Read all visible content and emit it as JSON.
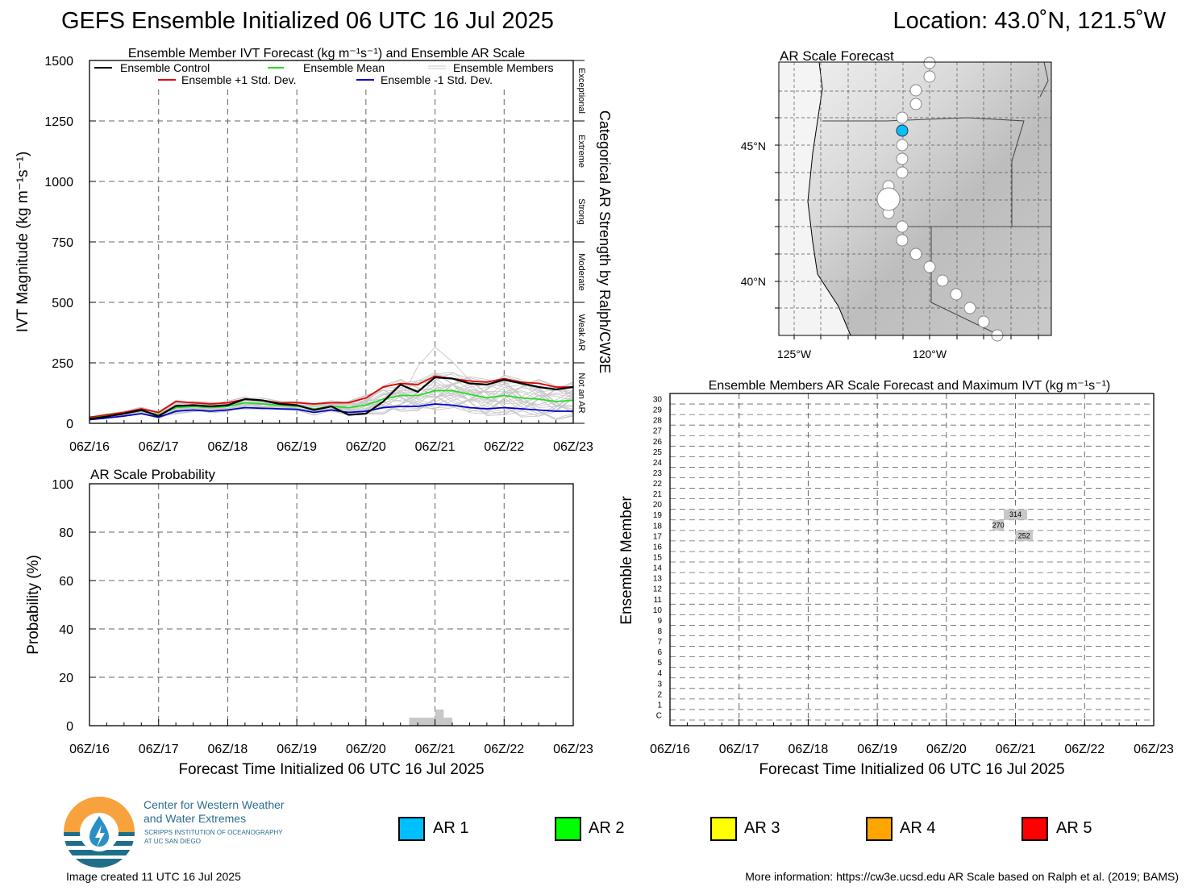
{
  "header": {
    "title": "GEFS Ensemble Initialized 06 UTC 16 Jul 2025",
    "location": "Location: 43.0˚N, 121.5˚W"
  },
  "time_ticks": [
    "06Z/16",
    "06Z/17",
    "06Z/18",
    "06Z/19",
    "06Z/20",
    "06Z/21",
    "06Z/22",
    "06Z/23"
  ],
  "ivt_panel": {
    "title": "Ensemble Member IVT Forecast (kg m⁻¹s⁻¹) and Ensemble AR Scale",
    "ylabel": "IVT Magnitude (kg m⁻¹s⁻¹)",
    "right_label": "Categorical AR Strength by Ralph/CW3E",
    "categories": [
      "Exceptional",
      "Extreme",
      "Strong",
      "Moderate",
      "Weak AR",
      "Not an AR"
    ],
    "legend": {
      "control": "Ensemble Control",
      "mean": "Ensemble Mean",
      "members": "Ensemble Members",
      "plus": "Ensemble +1 Std. Dev.",
      "minus": "Ensemble -1 Std. Dev."
    }
  },
  "prob_panel": {
    "title": "AR Scale Probability",
    "ylabel": "Probability (%)",
    "xlabel": "Forecast Time Initialized 06 UTC 16 Jul 2025"
  },
  "map_panel": {
    "title": "AR Scale Forecast",
    "lat_labels": [
      "45°N",
      "40°N"
    ],
    "lon_labels": [
      "125°W",
      "120°W"
    ]
  },
  "members_panel": {
    "title": "Ensemble Members AR Scale Forecast and Maximum IVT (kg m⁻¹s⁻¹)",
    "ylabel": "Ensemble Member",
    "xlabel": "Forecast Time Initialized 06 UTC 16 Jul 2025",
    "member_labels": [
      "C",
      "1",
      "2",
      "3",
      "4",
      "5",
      "6",
      "7",
      "8",
      "9",
      "10",
      "11",
      "12",
      "13",
      "14",
      "15",
      "16",
      "17",
      "18",
      "19",
      "20",
      "21",
      "22",
      "23",
      "24",
      "25",
      "26",
      "27",
      "28",
      "29",
      "30"
    ],
    "events": [
      {
        "member": 19,
        "start_day": 4.83,
        "end_day": 5.17,
        "value": "314"
      },
      {
        "member": 18,
        "start_day": 4.67,
        "end_day": 4.83,
        "value": "270"
      },
      {
        "member": 17,
        "start_day": 5.0,
        "end_day": 5.25,
        "value": "252"
      }
    ]
  },
  "scale_legend": [
    {
      "label": "AR 1",
      "color": "#00bfff"
    },
    {
      "label": "AR 2",
      "color": "#00ff00"
    },
    {
      "label": "AR 3",
      "color": "#ffff00"
    },
    {
      "label": "AR 4",
      "color": "#ffa500"
    },
    {
      "label": "AR 5",
      "color": "#ff0000"
    }
  ],
  "logo": {
    "line1": "Center for Western Weather",
    "line2": "and Water Extremes",
    "line3": "SCRIPPS INSTITUTION OF OCEANOGRAPHY",
    "line4": "AT UC SAN DIEGO"
  },
  "footer": {
    "created": "Image created 11 UTC 16 Jul 2025",
    "info": "More information: https://cw3e.ucsd.edu AR Scale based on Ralph et al. (2019; BAMS)"
  },
  "chart_data": [
    {
      "type": "line",
      "title": "Ensemble Member IVT Forecast (kg m⁻¹s⁻¹) and Ensemble AR Scale",
      "x_unit": "days since 06Z/16",
      "ylim": [
        0,
        1500
      ],
      "yticks": [
        0,
        250,
        500,
        750,
        1000,
        1250,
        1500
      ],
      "grid": true,
      "legend_position": "top",
      "x": [
        0,
        0.25,
        0.5,
        0.75,
        1,
        1.25,
        1.5,
        1.75,
        2,
        2.25,
        2.5,
        2.75,
        3,
        3.25,
        3.5,
        3.75,
        4,
        4.25,
        4.5,
        4.75,
        5,
        5.25,
        5.5,
        5.75,
        6,
        6.25,
        6.5,
        6.75,
        7
      ],
      "series": [
        {
          "name": "Ensemble Control",
          "color": "#000000",
          "values": [
            18,
            28,
            40,
            55,
            30,
            72,
            75,
            70,
            75,
            100,
            95,
            80,
            75,
            55,
            70,
            35,
            40,
            90,
            160,
            130,
            190,
            185,
            165,
            160,
            180,
            165,
            150,
            140,
            150
          ]
        },
        {
          "name": "Ensemble Mean",
          "color": "#22dd22",
          "values": [
            20,
            30,
            40,
            52,
            35,
            65,
            70,
            65,
            70,
            85,
            80,
            75,
            70,
            60,
            70,
            65,
            75,
            100,
            115,
            115,
            135,
            135,
            120,
            105,
            115,
            105,
            100,
            90,
            95
          ]
        },
        {
          "name": "Ensemble +1 Std. Dev.",
          "color": "#e00000",
          "values": [
            25,
            35,
            45,
            60,
            45,
            90,
            85,
            80,
            85,
            100,
            95,
            85,
            85,
            80,
            85,
            85,
            105,
            150,
            165,
            160,
            195,
            185,
            175,
            170,
            185,
            170,
            165,
            150,
            150
          ]
        },
        {
          "name": "Ensemble -1 Std. Dev.",
          "color": "#0000cc",
          "values": [
            15,
            22,
            30,
            40,
            25,
            50,
            55,
            50,
            55,
            65,
            62,
            60,
            58,
            45,
            55,
            45,
            50,
            65,
            70,
            70,
            80,
            75,
            65,
            60,
            65,
            60,
            55,
            50,
            50
          ]
        }
      ]
    },
    {
      "type": "bar",
      "title": "AR Scale Probability",
      "x_unit": "days since 06Z/16",
      "ylim": [
        0,
        100
      ],
      "yticks": [
        0,
        20,
        40,
        60,
        80,
        100
      ],
      "bar_width_days": 0.125,
      "x": [
        4.6875,
        4.8125,
        4.9375,
        5.0625,
        5.1875
      ],
      "values": [
        3.3,
        3.3,
        3.3,
        6.7,
        3.3
      ],
      "color": "#c8c8c8"
    }
  ]
}
